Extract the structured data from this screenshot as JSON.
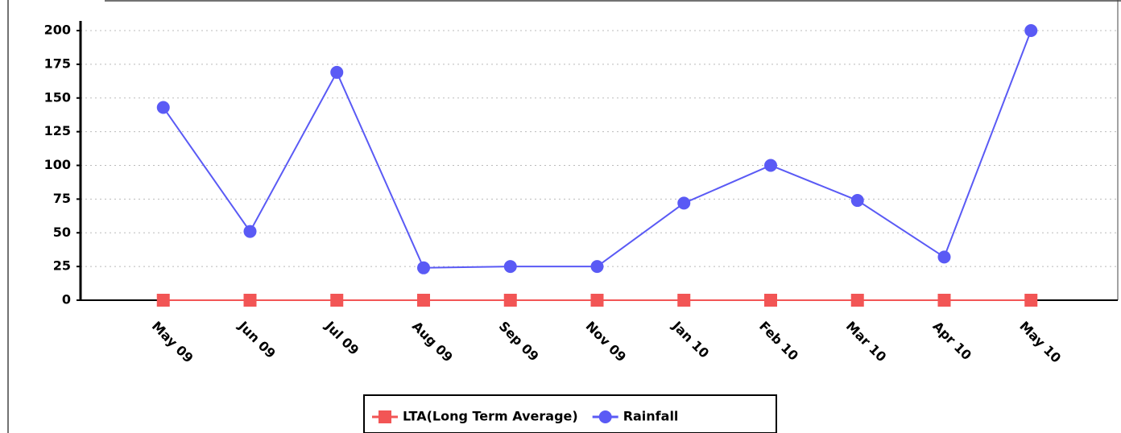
{
  "chart_data": {
    "type": "line",
    "categories": [
      "May 09",
      "Jun 09",
      "Jul 09",
      "Aug 09",
      "Sep 09",
      "Nov 09",
      "Jan 10",
      "Feb 10",
      "Mar 10",
      "Apr 10",
      "May 10"
    ],
    "series": [
      {
        "name": "LTA(Long Term Average)",
        "color": "#f25555",
        "marker": "square",
        "values": [
          0,
          0,
          0,
          0,
          0,
          0,
          0,
          0,
          0,
          0,
          0
        ]
      },
      {
        "name": "Rainfall",
        "color": "#5a5af5",
        "marker": "circle",
        "values": [
          143,
          51,
          169,
          24,
          25,
          25,
          72,
          100,
          74,
          32,
          200
        ]
      }
    ],
    "ylim": [
      0,
      200
    ],
    "yticks": [
      0,
      25,
      50,
      75,
      100,
      125,
      150,
      175,
      200
    ],
    "grid": true,
    "legend": "bottom"
  }
}
